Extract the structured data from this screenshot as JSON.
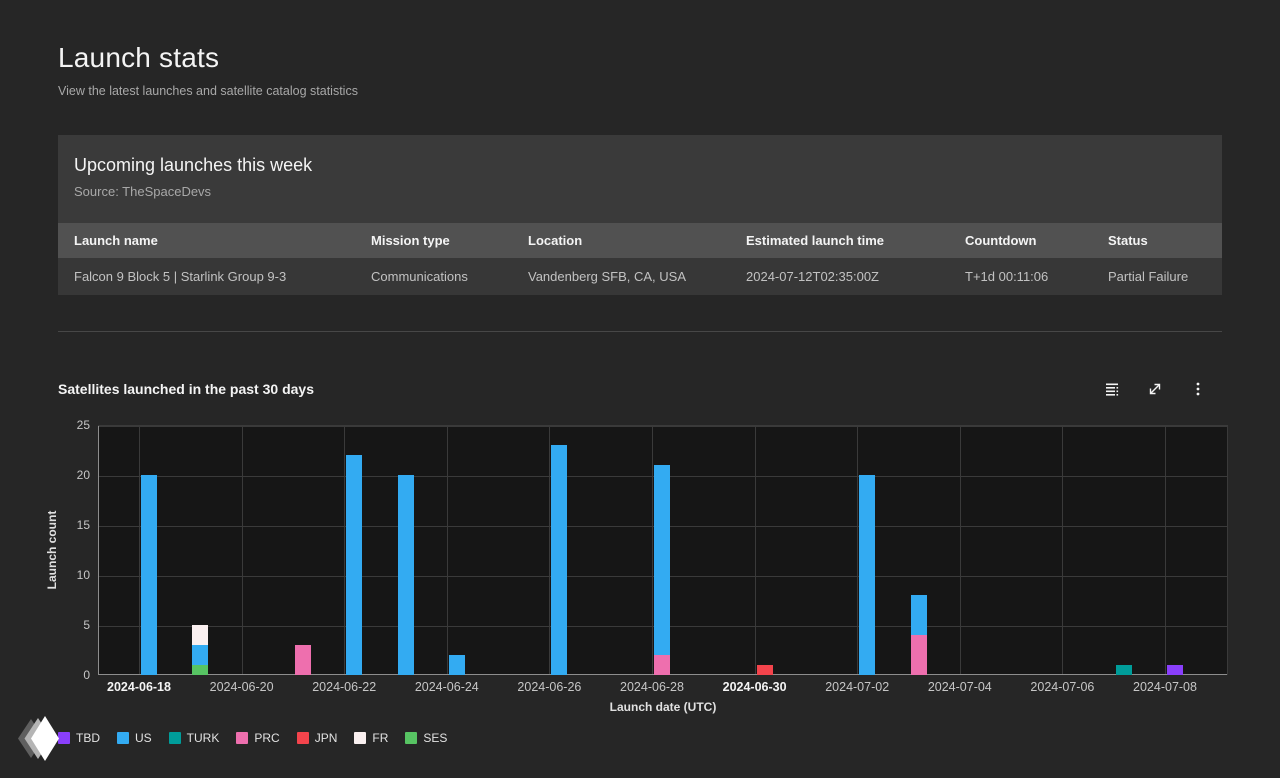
{
  "page": {
    "title": "Launch stats",
    "subtitle": "View the latest launches and satellite catalog statistics"
  },
  "upcoming": {
    "title": "Upcoming launches this week",
    "source": "Source: TheSpaceDevs",
    "table": {
      "columns": [
        "Launch name",
        "Mission type",
        "Location",
        "Estimated launch time",
        "Countdown",
        "Status"
      ],
      "rows": [
        [
          "Falcon 9 Block 5 | Starlink Group 9-3",
          "Communications",
          "Vandenberg SFB, CA, USA",
          "2024-07-12T02:35:00Z",
          "T+1d 00:11:06",
          "Partial Failure"
        ]
      ]
    }
  },
  "chart_section": {
    "title": "Satellites launched in the past 30 days",
    "toolbar": [
      "data-table-icon",
      "maximize-icon",
      "overflow-menu-icon"
    ]
  },
  "chart_data": {
    "type": "bar",
    "stacked": true,
    "title": "Satellites launched in the past 30 days",
    "xlabel": "Launch date (UTC)",
    "ylabel": "Launch count",
    "ylim": [
      0,
      25
    ],
    "yticks": [
      0,
      5,
      10,
      15,
      20,
      25
    ],
    "grid": true,
    "legend_position": "bottom-left",
    "xtick_every": 2,
    "bold_xticks": [
      "2024-06-18",
      "2024-06-30"
    ],
    "categories": [
      "2024-06-18",
      "2024-06-19",
      "2024-06-20",
      "2024-06-21",
      "2024-06-22",
      "2024-06-23",
      "2024-06-24",
      "2024-06-25",
      "2024-06-26",
      "2024-06-27",
      "2024-06-28",
      "2024-06-29",
      "2024-06-30",
      "2024-07-01",
      "2024-07-02",
      "2024-07-03",
      "2024-07-04",
      "2024-07-05",
      "2024-07-06",
      "2024-07-07",
      "2024-07-08"
    ],
    "series": [
      {
        "name": "TBD",
        "color": "#8a3ffc",
        "values": [
          0,
          0,
          0,
          0,
          0,
          0,
          0,
          0,
          0,
          0,
          0,
          0,
          0,
          0,
          0,
          0,
          0,
          0,
          0,
          0,
          1
        ]
      },
      {
        "name": "US",
        "color": "#33abf2",
        "values": [
          20,
          2,
          0,
          0,
          22,
          20,
          2,
          0,
          23,
          0,
          19,
          0,
          0,
          0,
          20,
          4,
          0,
          0,
          0,
          0,
          0
        ]
      },
      {
        "name": "TURK",
        "color": "#009d9a",
        "values": [
          0,
          0,
          0,
          0,
          0,
          0,
          0,
          0,
          0,
          0,
          0,
          0,
          0,
          0,
          0,
          0,
          0,
          0,
          0,
          1,
          0
        ]
      },
      {
        "name": "PRC",
        "color": "#ee6fae",
        "values": [
          0,
          0,
          0,
          3,
          0,
          0,
          0,
          0,
          0,
          0,
          2,
          0,
          0,
          0,
          0,
          4,
          0,
          0,
          0,
          0,
          0
        ]
      },
      {
        "name": "JPN",
        "color": "#f4444c",
        "values": [
          0,
          0,
          0,
          0,
          0,
          0,
          0,
          0,
          0,
          0,
          0,
          0,
          1,
          0,
          0,
          0,
          0,
          0,
          0,
          0,
          0
        ]
      },
      {
        "name": "FR",
        "color": "#faf0f0",
        "values": [
          0,
          2,
          0,
          0,
          0,
          0,
          0,
          0,
          0,
          0,
          0,
          0,
          0,
          0,
          0,
          0,
          0,
          0,
          0,
          0,
          0
        ]
      },
      {
        "name": "SES",
        "color": "#57c463",
        "values": [
          0,
          1,
          0,
          0,
          0,
          0,
          0,
          0,
          0,
          0,
          0,
          0,
          0,
          0,
          0,
          0,
          0,
          0,
          0,
          0,
          0
        ]
      }
    ],
    "stack_order": [
      "SES",
      "PRC",
      "JPN",
      "TURK",
      "TBD",
      "US",
      "FR"
    ],
    "colors": {
      "plot_background": "#161616",
      "gridline": "#3a3a3a",
      "axis": "#8d8d8d"
    }
  }
}
